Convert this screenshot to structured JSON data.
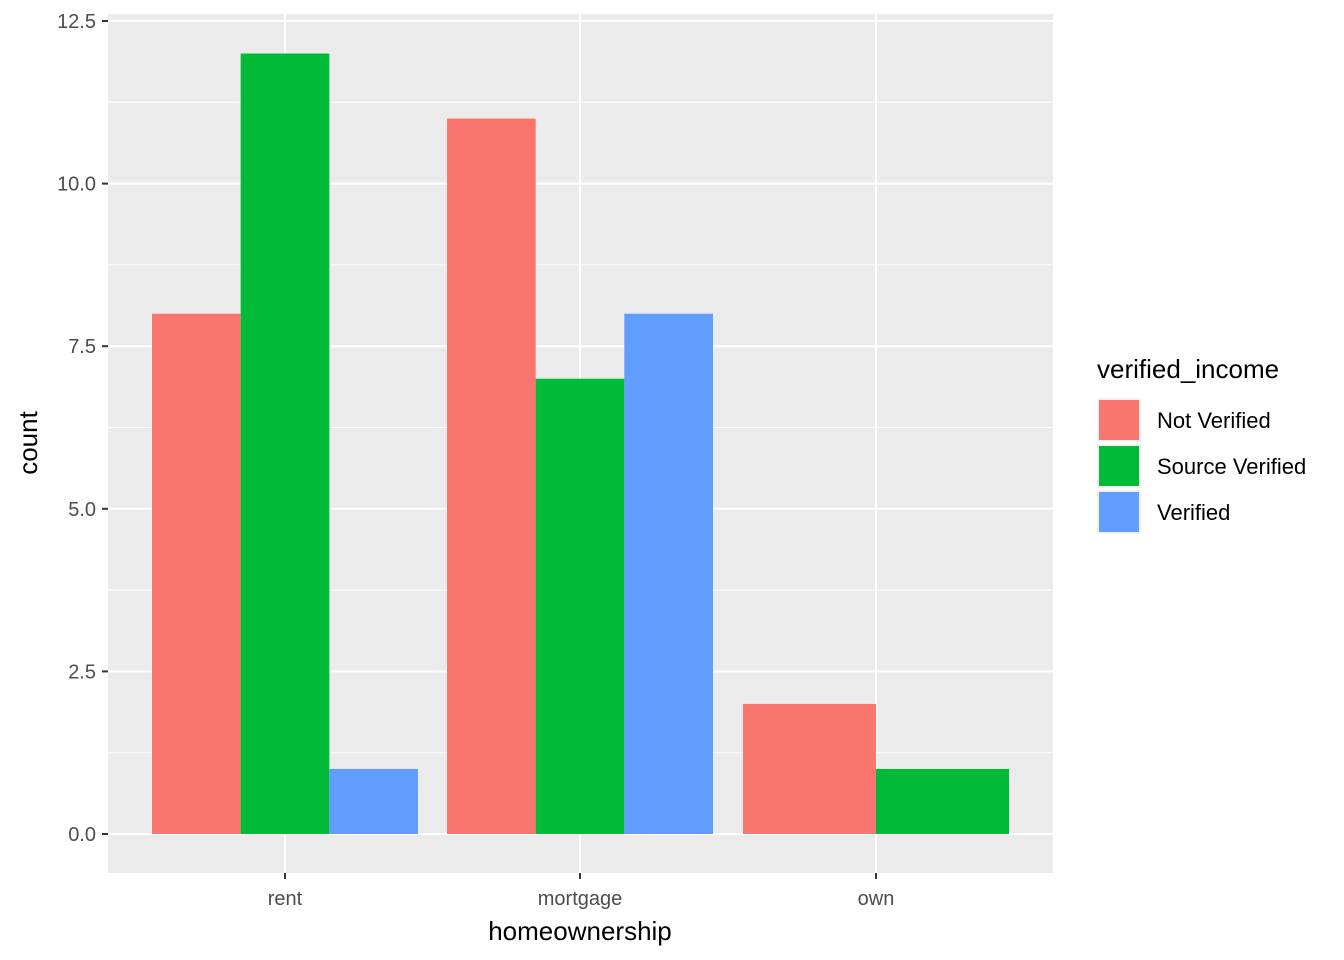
{
  "chart_data": {
    "type": "bar",
    "xlabel": "homeownership",
    "ylabel": "count",
    "categories": [
      "rent",
      "mortgage",
      "own"
    ],
    "ylim": [
      -0.6,
      12.5
    ],
    "yticks": [
      "0.0",
      "2.5",
      "5.0",
      "7.5",
      "10.0",
      "12.5"
    ],
    "ytick_values": [
      0,
      2.5,
      5,
      7.5,
      10,
      12.5
    ],
    "legend": {
      "title": "verified_income",
      "placement": "right"
    },
    "series": [
      {
        "name": "Not Verified",
        "color": "#F8766D",
        "values": [
          8,
          11,
          2
        ]
      },
      {
        "name": "Source Verified",
        "color": "#00BA38",
        "values": [
          12,
          7,
          1
        ]
      },
      {
        "name": "Verified",
        "color": "#619CFF",
        "values": [
          1,
          8,
          null
        ]
      }
    ],
    "panel_color": "#EBEBEB",
    "grid": true
  }
}
